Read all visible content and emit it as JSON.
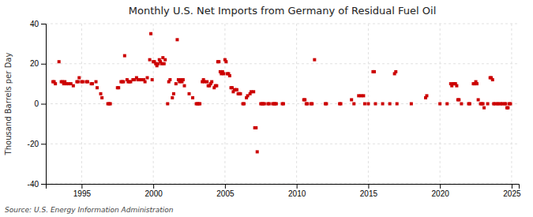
{
  "chart_data": {
    "type": "scatter",
    "title": "Monthly U.S. Net Imports from Germany of Residual Fuel Oil",
    "ylabel": "Thousand Barrels per Day",
    "source": "Source: U.S. Energy Information Administration",
    "color": "#cc0000",
    "marker": "square",
    "grid": true,
    "xlim": [
      1992.5,
      2025.5
    ],
    "ylim": [
      -40,
      40
    ],
    "xticks": [
      1995,
      2000,
      2005,
      2010,
      2015,
      2020,
      2025
    ],
    "yticks": [
      -40,
      -20,
      0,
      20,
      40
    ],
    "x": [
      1993.0,
      1993.08,
      1993.17,
      1993.42,
      1993.58,
      1993.67,
      1993.75,
      1993.83,
      1993.92,
      1994.08,
      1994.25,
      1994.42,
      1994.67,
      1994.75,
      1994.83,
      1995.0,
      1995.08,
      1995.33,
      1995.42,
      1995.67,
      1995.75,
      1996.0,
      1996.08,
      1996.33,
      1996.42,
      1996.83,
      1996.92,
      1997.0,
      1997.5,
      1997.58,
      1997.75,
      1997.83,
      1997.92,
      1998.0,
      1998.17,
      1998.25,
      1998.33,
      1998.42,
      1998.58,
      1998.67,
      1998.83,
      1998.92,
      1999.0,
      1999.08,
      1999.17,
      1999.33,
      1999.42,
      1999.58,
      1999.75,
      1999.83,
      1999.92,
      2000.0,
      2000.08,
      2000.17,
      2000.25,
      2000.33,
      2000.42,
      2000.5,
      2000.58,
      2000.67,
      2000.75,
      2000.83,
      2001.0,
      2001.08,
      2001.17,
      2001.33,
      2001.42,
      2001.58,
      2001.67,
      2001.75,
      2001.83,
      2001.92,
      2002.0,
      2002.08,
      2002.17,
      2002.5,
      2002.75,
      2003.0,
      2003.08,
      2003.17,
      2003.25,
      2003.42,
      2003.5,
      2003.58,
      2003.75,
      2003.83,
      2003.92,
      2004.0,
      2004.08,
      2004.25,
      2004.33,
      2004.42,
      2004.5,
      2004.58,
      2004.67,
      2004.75,
      2004.83,
      2004.92,
      2005.0,
      2005.08,
      2005.17,
      2005.25,
      2005.33,
      2005.42,
      2005.5,
      2005.58,
      2005.67,
      2005.75,
      2005.83,
      2005.92,
      2006.0,
      2006.08,
      2006.25,
      2006.33,
      2006.5,
      2006.58,
      2006.75,
      2006.83,
      2007.0,
      2007.08,
      2007.17,
      2007.25,
      2007.5,
      2007.58,
      2007.67,
      2007.75,
      2008.0,
      2008.08,
      2008.33,
      2008.42,
      2008.5,
      2008.58,
      2009.0,
      2009.08,
      2010.5,
      2010.58,
      2010.67,
      2010.75,
      2011.0,
      2011.08,
      2011.25,
      2012.0,
      2012.08,
      2013.0,
      2013.08,
      2013.83,
      2014.0,
      2014.33,
      2014.5,
      2014.67,
      2014.75,
      2015.0,
      2015.33,
      2015.42,
      2015.5,
      2016.0,
      2016.5,
      2016.83,
      2016.92,
      2017.0,
      2018.0,
      2019.0,
      2019.08,
      2020.0,
      2020.5,
      2020.75,
      2020.83,
      2020.92,
      2021.0,
      2021.08,
      2021.17,
      2021.25,
      2021.33,
      2021.5,
      2022.0,
      2022.08,
      2022.33,
      2022.42,
      2022.5,
      2022.58,
      2022.67,
      2022.83,
      2022.92,
      2023.0,
      2023.08,
      2023.33,
      2023.5,
      2023.58,
      2023.67,
      2023.75,
      2023.83,
      2024.0,
      2024.08,
      2024.25,
      2024.33,
      2024.5,
      2024.58,
      2024.67,
      2024.75,
      2024.83,
      2024.92
    ],
    "values": [
      11,
      11,
      10,
      21,
      11,
      11,
      10,
      11,
      10,
      10,
      10,
      9,
      11,
      11,
      13,
      11,
      11,
      11,
      11,
      10,
      10,
      11,
      8,
      5,
      3,
      0,
      0,
      0,
      8,
      8,
      11,
      11,
      11,
      24,
      12,
      11,
      11,
      11,
      12,
      12,
      13,
      12,
      12,
      12,
      12,
      12,
      11,
      13,
      22,
      35,
      12,
      21,
      21,
      20,
      19,
      20,
      22,
      21,
      20,
      23,
      20,
      22,
      0,
      11,
      12,
      3,
      5,
      10,
      32,
      12,
      11,
      12,
      11,
      12,
      9,
      5,
      3,
      0,
      0,
      0,
      0,
      11,
      12,
      11,
      11,
      9,
      9,
      10,
      11,
      8,
      9,
      9,
      21,
      21,
      16,
      15,
      16,
      15,
      22,
      21,
      15,
      15,
      14,
      8,
      8,
      6,
      7,
      7,
      7,
      5,
      5,
      5,
      0,
      0,
      3,
      4,
      5,
      6,
      6,
      -12,
      -12,
      -24,
      0,
      0,
      0,
      0,
      0,
      0,
      0,
      0,
      0,
      0,
      0,
      0,
      2,
      2,
      0,
      0,
      0,
      0,
      22,
      0,
      0,
      0,
      0,
      2,
      0,
      4,
      4,
      4,
      0,
      0,
      16,
      16,
      0,
      0,
      0,
      15,
      16,
      0,
      0,
      3,
      4,
      0,
      0,
      10,
      9,
      10,
      10,
      10,
      9,
      2,
      2,
      0,
      0,
      0,
      10,
      10,
      11,
      10,
      2,
      0,
      0,
      0,
      -2,
      0,
      13,
      13,
      12,
      0,
      0,
      0,
      0,
      0,
      0,
      0,
      0,
      -2,
      -2,
      0,
      0
    ]
  }
}
